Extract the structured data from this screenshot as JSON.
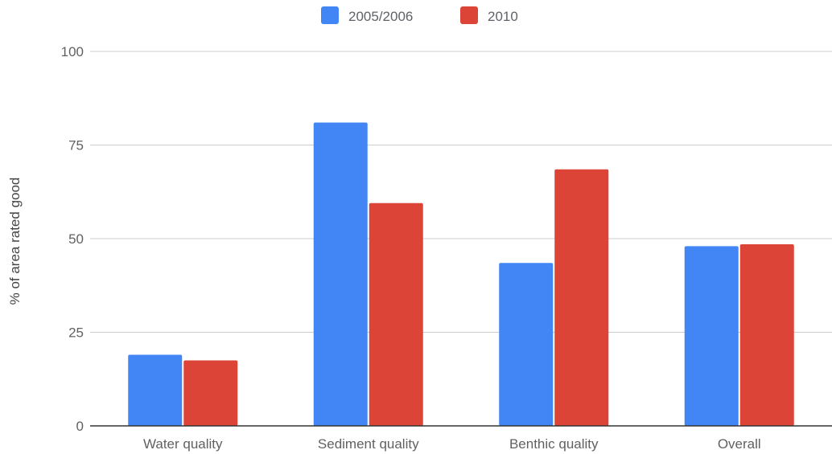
{
  "chart_data": {
    "type": "bar",
    "categories": [
      "Water quality",
      "Sediment quality",
      "Benthic quality",
      "Overall"
    ],
    "series": [
      {
        "name": "2005/2006",
        "color": "#4285f4",
        "values": [
          19,
          81,
          43.5,
          48
        ]
      },
      {
        "name": "2010",
        "color": "#db4437",
        "values": [
          17.5,
          59.5,
          68.5,
          48.5
        ]
      }
    ],
    "xlabel": "",
    "ylabel": "% of area rated good",
    "ylim": [
      0,
      100
    ],
    "yticks": [
      "0",
      "25",
      "50",
      "75",
      "100"
    ],
    "grid": true,
    "legend_position": "top"
  }
}
